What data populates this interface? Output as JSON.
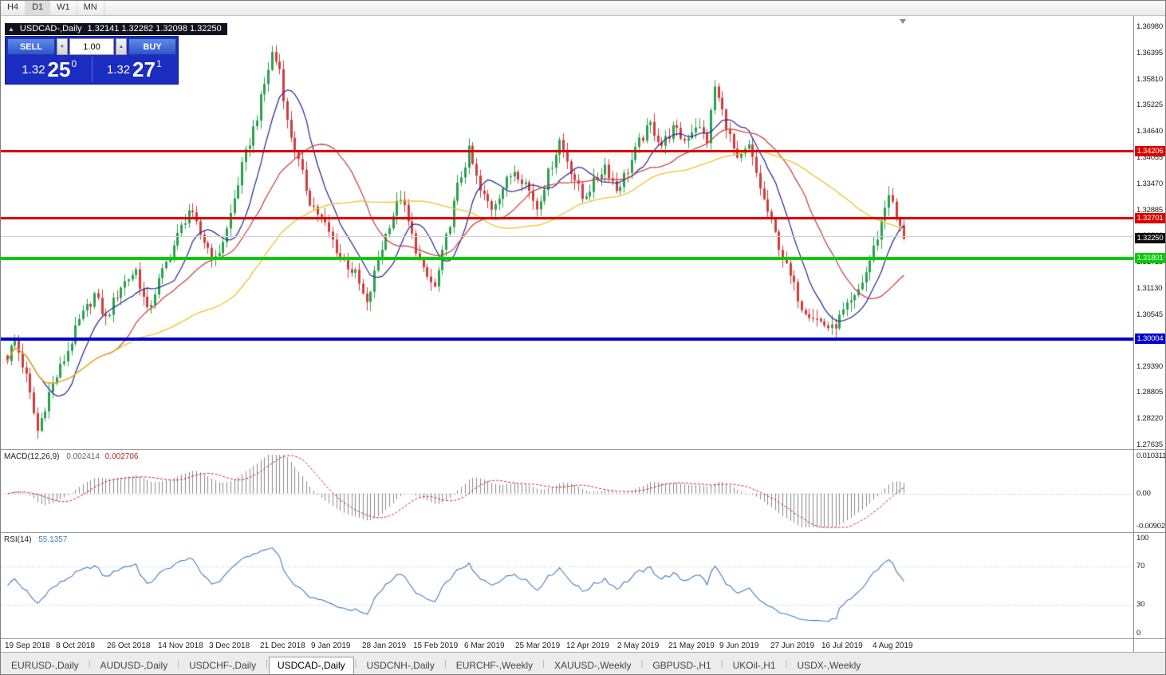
{
  "toolbar": {
    "timeframes": [
      "H4",
      "D1",
      "W1",
      "MN"
    ],
    "active_timeframe": "D1"
  },
  "chart_header": {
    "marker_icon": "triangle-up",
    "symbol": "USDCAD-,Daily",
    "ohlc": "1.32141 1.32282 1.32098 1.32250"
  },
  "trade_panel": {
    "sell_label": "SELL",
    "buy_label": "BUY",
    "volume": "1.00",
    "sell_price": {
      "base": "1.32",
      "pips": "25",
      "sup": "0"
    },
    "buy_price": {
      "base": "1.32",
      "pips": "27",
      "sup": "1"
    }
  },
  "price_axis": {
    "ticks": [
      "1.36980",
      "1.36395",
      "1.35810",
      "1.35225",
      "1.34640",
      "1.34055",
      "1.33470",
      "1.32885",
      "1.32300",
      "1.31715",
      "1.31130",
      "1.30545",
      "1.29960",
      "1.29390",
      "1.28805",
      "1.28220",
      "1.27635"
    ]
  },
  "macd_panel": {
    "name": "MACD(12,26,9)",
    "value_main": "0.002414",
    "value_signal": "0.002706",
    "axis_top": "0.010311",
    "axis_zero": "0.00",
    "axis_bottom": "-0.0090203"
  },
  "rsi_panel": {
    "name": "RSI(14)",
    "value": "55.1357",
    "axis": [
      "100",
      "70",
      "30",
      "0"
    ],
    "levels": [
      70,
      30
    ]
  },
  "date_axis": {
    "labels": [
      "19 Sep 2018",
      "8 Oct 2018",
      "26 Oct 2018",
      "14 Nov 2018",
      "3 Dec 2018",
      "21 Dec 2018",
      "9 Jan 2019",
      "28 Jan 2019",
      "15 Feb 2019",
      "6 Mar 2019",
      "25 Mar 2019",
      "12 Apr 2019",
      "2 May 2019",
      "21 May 2019",
      "9 Jun 2019",
      "27 Jun 2019",
      "16 Jul 2019",
      "4 Aug 2019"
    ]
  },
  "tabs": {
    "active_index": 3,
    "items": [
      "EURUSD-,Daily",
      "AUDUSD-,Daily",
      "USDCHF-,Daily",
      "USDCAD-,Daily",
      "USDCNH-,Daily",
      "EURCHF-,Weekly",
      "XAUUSD-,Weekly",
      "GBPUSD-,H1",
      "UKOil-,H1",
      "USDX-,Weekly"
    ]
  },
  "chart_data": {
    "type": "candlestick",
    "symbol": "USDCAD",
    "timeframe": "D1",
    "price_range": {
      "min": 1.27635,
      "max": 1.3698
    },
    "candle_count": 238,
    "current_ohlc": {
      "open": 1.32141,
      "high": 1.32282,
      "low": 1.32098,
      "close": 1.3225
    },
    "current_price": {
      "label": "1.32250",
      "value": 1.3225,
      "badge_color": "#0d0d0d"
    },
    "levels": [
      {
        "value": 1.34206,
        "label": "1.34206",
        "color": "#dd0000",
        "thickness": 3
      },
      {
        "value": 1.32701,
        "label": "1.32701",
        "color": "#dd0000",
        "thickness": 3
      },
      {
        "value": 1.31801,
        "label": "1.31801",
        "color": "#00cc00",
        "thickness": 4
      },
      {
        "value": 1.30004,
        "label": "1.30004",
        "color": "#0000cc",
        "thickness": 4
      }
    ],
    "moving_averages": [
      {
        "period": 10,
        "color": "#30309a"
      },
      {
        "period": 25,
        "color": "#c84545"
      },
      {
        "period": 55,
        "color": "#e9c427"
      }
    ],
    "colors": {
      "bull": "#2aa14d",
      "bear": "#d23b3b",
      "macd_hist": "#8a8a8a",
      "macd_signal": "#cc2222",
      "rsi_line": "#3f7cc1",
      "grid": "#d0d0d0"
    },
    "macd": {
      "fast": 12,
      "slow": 26,
      "signal": 9,
      "axis_max": 0.010311,
      "axis_min": -0.0090203
    },
    "rsi": {
      "period": 14,
      "axis_max": 100,
      "axis_min": 0
    },
    "price_path_waypoints": [
      [
        0,
        1.296
      ],
      [
        2,
        1.3
      ],
      [
        5,
        1.2915
      ],
      [
        8,
        1.2795
      ],
      [
        11,
        1.288
      ],
      [
        15,
        1.2955
      ],
      [
        19,
        1.304
      ],
      [
        23,
        1.31
      ],
      [
        26,
        1.3045
      ],
      [
        30,
        1.312
      ],
      [
        34,
        1.3155
      ],
      [
        37,
        1.306
      ],
      [
        40,
        1.313
      ],
      [
        44,
        1.321
      ],
      [
        48,
        1.329
      ],
      [
        51,
        1.3235
      ],
      [
        55,
        1.3175
      ],
      [
        58,
        1.3245
      ],
      [
        62,
        1.3385
      ],
      [
        66,
        1.35
      ],
      [
        70,
        1.364
      ],
      [
        72,
        1.3605
      ],
      [
        74,
        1.3485
      ],
      [
        77,
        1.3395
      ],
      [
        80,
        1.331
      ],
      [
        84,
        1.3255
      ],
      [
        88,
        1.3185
      ],
      [
        92,
        1.3145
      ],
      [
        95,
        1.3075
      ],
      [
        98,
        1.318
      ],
      [
        101,
        1.326
      ],
      [
        104,
        1.332
      ],
      [
        107,
        1.323
      ],
      [
        110,
        1.315
      ],
      [
        113,
        1.3115
      ],
      [
        116,
        1.3225
      ],
      [
        119,
        1.334
      ],
      [
        122,
        1.342
      ],
      [
        125,
        1.333
      ],
      [
        128,
        1.3295
      ],
      [
        131,
        1.334
      ],
      [
        134,
        1.338
      ],
      [
        137,
        1.335
      ],
      [
        140,
        1.3295
      ],
      [
        143,
        1.337
      ],
      [
        146,
        1.3445
      ],
      [
        149,
        1.338
      ],
      [
        152,
        1.3315
      ],
      [
        155,
        1.335
      ],
      [
        158,
        1.339
      ],
      [
        161,
        1.3335
      ],
      [
        164,
        1.338
      ],
      [
        167,
        1.344
      ],
      [
        170,
        1.348
      ],
      [
        173,
        1.3435
      ],
      [
        176,
        1.347
      ],
      [
        179,
        1.3445
      ],
      [
        182,
        1.348
      ],
      [
        185,
        1.3445
      ],
      [
        187,
        1.3565
      ],
      [
        190,
        1.348
      ],
      [
        193,
        1.3395
      ],
      [
        196,
        1.343
      ],
      [
        200,
        1.331
      ],
      [
        203,
        1.3235
      ],
      [
        206,
        1.316
      ],
      [
        210,
        1.3075
      ],
      [
        214,
        1.3045
      ],
      [
        218,
        1.3022
      ],
      [
        221,
        1.306
      ],
      [
        224,
        1.309
      ],
      [
        227,
        1.315
      ],
      [
        230,
        1.323
      ],
      [
        233,
        1.333
      ],
      [
        235,
        1.327
      ],
      [
        237,
        1.3225
      ]
    ]
  }
}
